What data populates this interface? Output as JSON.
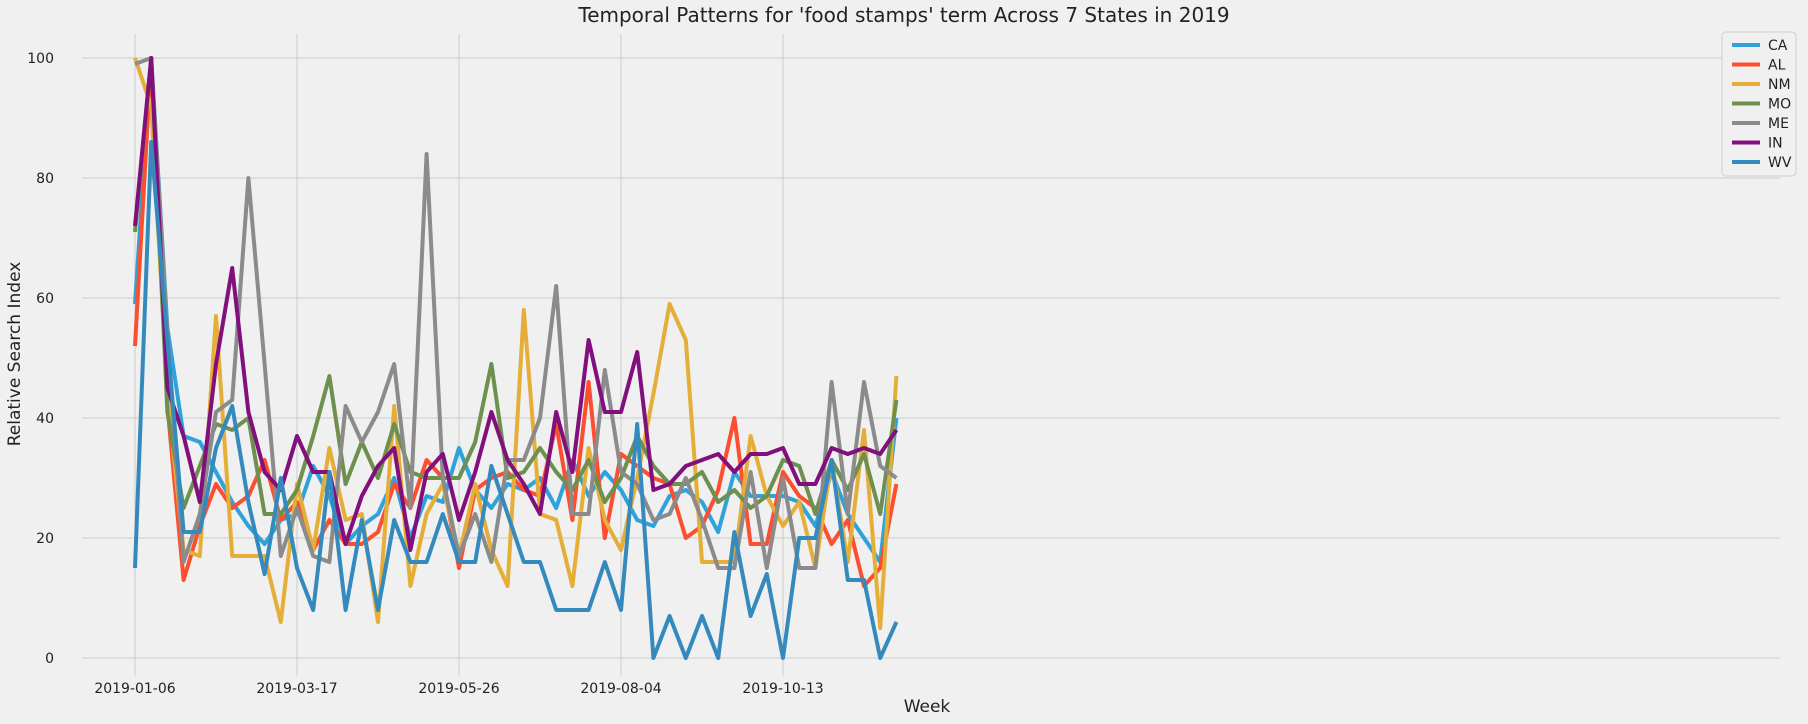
{
  "chart_data": {
    "type": "line",
    "title": "Temporal Patterns for 'food stamps' term Across 7 States in 2019",
    "xlabel": "Week",
    "ylabel": "Relative Search Index",
    "x": [
      "2019-01-06",
      "2019-01-13",
      "2019-01-20",
      "2019-01-27",
      "2019-02-03",
      "2019-02-10",
      "2019-02-17",
      "2019-02-24",
      "2019-03-03",
      "2019-03-10",
      "2019-03-17",
      "2019-03-24",
      "2019-03-31",
      "2019-04-07",
      "2019-04-14",
      "2019-04-21",
      "2019-04-28",
      "2019-05-05",
      "2019-05-12",
      "2019-05-19",
      "2019-05-26",
      "2019-06-02",
      "2019-06-09",
      "2019-06-16",
      "2019-06-23",
      "2019-06-30",
      "2019-07-07",
      "2019-07-14",
      "2019-07-21",
      "2019-07-28",
      "2019-08-04",
      "2019-08-11",
      "2019-08-18",
      "2019-08-25",
      "2019-09-01",
      "2019-09-08",
      "2019-09-15",
      "2019-09-22",
      "2019-09-29",
      "2019-10-06",
      "2019-10-13",
      "2019-10-20",
      "2019-10-27",
      "2019-11-03",
      "2019-11-10",
      "2019-11-17",
      "2019-11-24",
      "2019-12-01"
    ],
    "x_ticks": [
      "2019-01-06",
      "2019-03-17",
      "2019-05-26",
      "2019-08-04",
      "2019-10-13"
    ],
    "ylim": [
      -3,
      104
    ],
    "y_ticks": [
      0,
      20,
      40,
      60,
      80,
      100
    ],
    "grid": true,
    "legend_position": "top-right",
    "series": [
      {
        "name": "CA",
        "color": "#30a2da",
        "values": [
          59,
          100,
          55,
          37,
          36,
          31,
          26,
          22,
          19,
          23,
          24,
          32,
          27,
          19,
          22,
          24,
          30,
          20,
          27,
          26,
          35,
          28,
          25,
          29,
          28,
          30,
          25,
          33,
          27,
          31,
          28,
          23,
          22,
          27,
          28,
          26,
          21,
          31,
          27,
          27,
          27,
          26,
          22,
          31,
          24,
          20,
          16,
          40
        ]
      },
      {
        "name": "AL",
        "color": "#fc4f30",
        "values": [
          52,
          100,
          42,
          13,
          22,
          29,
          25,
          27,
          33,
          23,
          26,
          18,
          23,
          19,
          19,
          21,
          29,
          25,
          33,
          30,
          15,
          28,
          30,
          31,
          28,
          27,
          39,
          23,
          46,
          20,
          34,
          32,
          30,
          29,
          20,
          22,
          28,
          40,
          19,
          19,
          31,
          27,
          25,
          19,
          23,
          12,
          15,
          29
        ]
      },
      {
        "name": "NM",
        "color": "#e5ae38",
        "values": [
          100,
          92,
          44,
          18,
          17,
          57,
          17,
          17,
          17,
          6,
          29,
          18,
          35,
          23,
          24,
          6,
          42,
          12,
          24,
          29,
          17,
          29,
          18,
          12,
          58,
          24,
          23,
          12,
          35,
          23,
          18,
          30,
          44,
          59,
          53,
          16,
          16,
          16,
          37,
          27,
          22,
          26,
          15,
          33,
          16,
          38,
          5,
          47
        ]
      },
      {
        "name": "MO",
        "color": "#6d904f",
        "values": [
          71,
          100,
          41,
          25,
          32,
          39,
          38,
          40,
          24,
          24,
          28,
          37,
          47,
          29,
          36,
          30,
          39,
          31,
          30,
          30,
          30,
          36,
          49,
          30,
          31,
          35,
          31,
          28,
          33,
          26,
          30,
          37,
          32,
          29,
          29,
          31,
          26,
          28,
          25,
          27,
          33,
          32,
          24,
          33,
          28,
          34,
          24,
          43
        ]
      },
      {
        "name": "ME",
        "color": "#8b8b8b",
        "values": [
          99,
          100,
          54,
          16,
          24,
          41,
          43,
          80,
          49,
          17,
          25,
          17,
          16,
          42,
          36,
          41,
          49,
          25,
          84,
          30,
          17,
          24,
          16,
          33,
          33,
          40,
          62,
          24,
          24,
          48,
          31,
          29,
          23,
          24,
          30,
          23,
          15,
          15,
          31,
          15,
          30,
          15,
          15,
          46,
          24,
          46,
          32,
          30
        ]
      },
      {
        "name": "IN",
        "color": "#810f7c",
        "values": [
          72,
          100,
          45,
          37,
          26,
          49,
          65,
          41,
          31,
          28,
          37,
          31,
          31,
          19,
          27,
          32,
          35,
          18,
          31,
          34,
          23,
          31,
          41,
          33,
          29,
          24,
          41,
          31,
          53,
          41,
          41,
          51,
          28,
          29,
          32,
          33,
          34,
          31,
          34,
          34,
          35,
          29,
          29,
          35,
          34,
          35,
          34,
          38
        ]
      },
      {
        "name": "WV",
        "color": "#348abd",
        "values": [
          15,
          86,
          53,
          21,
          21,
          35,
          42,
          26,
          14,
          30,
          15,
          8,
          31,
          8,
          23,
          8,
          23,
          16,
          16,
          24,
          16,
          16,
          32,
          24,
          16,
          16,
          8,
          8,
          8,
          16,
          8,
          39,
          0,
          7,
          0,
          7,
          0,
          21,
          7,
          14,
          0,
          20,
          20,
          33,
          13,
          13,
          0,
          6
        ]
      }
    ]
  }
}
